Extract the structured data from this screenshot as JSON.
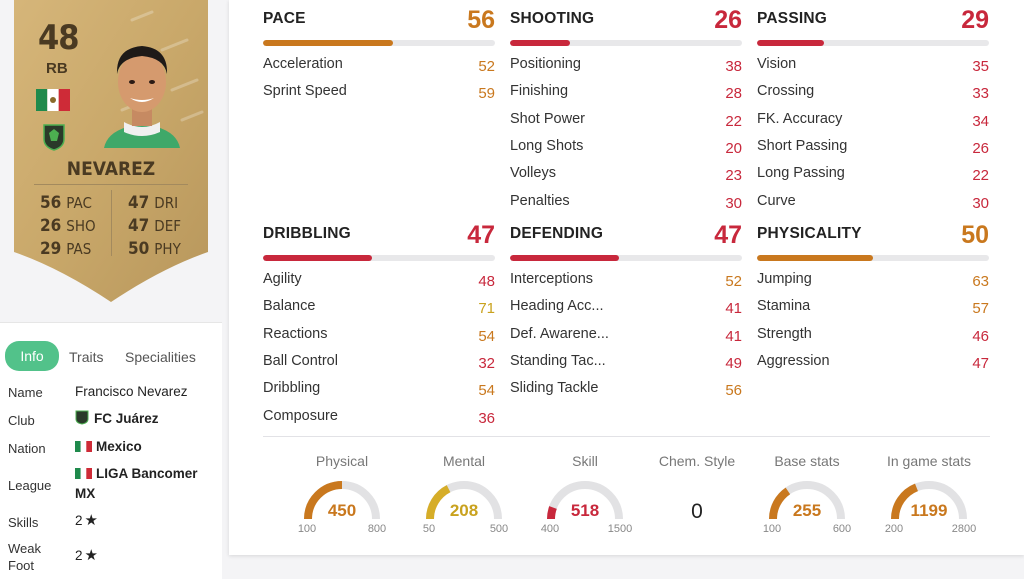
{
  "card": {
    "rating": "48",
    "position": "RB",
    "name": "NEVAREZ",
    "stats_left": [
      {
        "value": "56",
        "label": "PAC"
      },
      {
        "value": "26",
        "label": "SHO"
      },
      {
        "value": "29",
        "label": "PAS"
      }
    ],
    "stats_right": [
      {
        "value": "47",
        "label": "DRI"
      },
      {
        "value": "47",
        "label": "DEF"
      },
      {
        "value": "50",
        "label": "PHY"
      }
    ],
    "colors": {
      "card": "#c9a86a",
      "text": "#4a3a22"
    }
  },
  "tabs": [
    {
      "label": "Info",
      "active": true
    },
    {
      "label": "Traits",
      "active": false
    },
    {
      "label": "Specialities",
      "active": false
    }
  ],
  "info": {
    "name_label": "Name",
    "name_value": "Francisco Nevarez",
    "club_label": "Club",
    "club_value": "FC Juárez",
    "nation_label": "Nation",
    "nation_value": "Mexico",
    "league_label": "League",
    "league_value": "LIGA Bancomer MX",
    "skills_label": "Skills",
    "skills_value": "2",
    "weakfoot_label": "Weak Foot",
    "weakfoot_value": "2",
    "star_icon": "★"
  },
  "groups": [
    {
      "title": "PACE",
      "value": "56",
      "fill": 0.56,
      "color": "orange",
      "stats": [
        {
          "name": "Acceleration",
          "value": "52",
          "color": "orange"
        },
        {
          "name": "Sprint Speed",
          "value": "59",
          "color": "orange"
        }
      ]
    },
    {
      "title": "SHOOTING",
      "value": "26",
      "fill": 0.26,
      "color": "red",
      "stats": [
        {
          "name": "Positioning",
          "value": "38",
          "color": "red"
        },
        {
          "name": "Finishing",
          "value": "28",
          "color": "red"
        },
        {
          "name": "Shot Power",
          "value": "22",
          "color": "red"
        },
        {
          "name": "Long Shots",
          "value": "20",
          "color": "red"
        },
        {
          "name": "Volleys",
          "value": "23",
          "color": "red"
        },
        {
          "name": "Penalties",
          "value": "30",
          "color": "red"
        }
      ]
    },
    {
      "title": "PASSING",
      "value": "29",
      "fill": 0.29,
      "color": "red",
      "stats": [
        {
          "name": "Vision",
          "value": "35",
          "color": "red"
        },
        {
          "name": "Crossing",
          "value": "33",
          "color": "red"
        },
        {
          "name": "FK. Accuracy",
          "value": "34",
          "color": "red"
        },
        {
          "name": "Short Passing",
          "value": "26",
          "color": "red"
        },
        {
          "name": "Long Passing",
          "value": "22",
          "color": "red"
        },
        {
          "name": "Curve",
          "value": "30",
          "color": "red"
        }
      ]
    },
    {
      "title": "DRIBBLING",
      "value": "47",
      "fill": 0.47,
      "color": "red",
      "stats": [
        {
          "name": "Agility",
          "value": "48",
          "color": "red"
        },
        {
          "name": "Balance",
          "value": "71",
          "color": "yellow"
        },
        {
          "name": "Reactions",
          "value": "54",
          "color": "orange"
        },
        {
          "name": "Ball Control",
          "value": "32",
          "color": "red"
        },
        {
          "name": "Dribbling",
          "value": "54",
          "color": "orange"
        },
        {
          "name": "Composure",
          "value": "36",
          "color": "red"
        }
      ]
    },
    {
      "title": "DEFENDING",
      "value": "47",
      "fill": 0.47,
      "color": "red",
      "stats": [
        {
          "name": "Interceptions",
          "value": "52",
          "color": "orange"
        },
        {
          "name": "Heading Acc...",
          "value": "41",
          "color": "red"
        },
        {
          "name": "Def. Awarene...",
          "value": "41",
          "color": "red"
        },
        {
          "name": "Standing Tac...",
          "value": "49",
          "color": "red"
        },
        {
          "name": "Sliding Tackle",
          "value": "56",
          "color": "orange"
        }
      ]
    },
    {
      "title": "PHYSICALITY",
      "value": "50",
      "fill": 0.5,
      "color": "orange",
      "stats": [
        {
          "name": "Jumping",
          "value": "63",
          "color": "orange"
        },
        {
          "name": "Stamina",
          "value": "57",
          "color": "orange"
        },
        {
          "name": "Strength",
          "value": "46",
          "color": "red"
        },
        {
          "name": "Aggression",
          "value": "47",
          "color": "red"
        }
      ]
    }
  ],
  "gauges": [
    {
      "title": "Physical",
      "value": "450",
      "min": "100",
      "max": "800",
      "fraction": 0.5,
      "color": "#c9781e"
    },
    {
      "title": "Mental",
      "value": "208",
      "min": "50",
      "max": "500",
      "fraction": 0.35,
      "color": "#d6ad28"
    },
    {
      "title": "Skill",
      "value": "518",
      "min": "400",
      "max": "1500",
      "fraction": 0.11,
      "color": "#c8283c"
    },
    {
      "title": "Base stats",
      "value": "255",
      "min": "100",
      "max": "600",
      "fraction": 0.31,
      "color": "#c9781e"
    },
    {
      "title": "In game stats",
      "value": "1199",
      "min": "200",
      "max": "2800",
      "fraction": 0.38,
      "color": "#c9781e"
    }
  ],
  "chem": {
    "title": "Chem. Style",
    "value": "0"
  }
}
